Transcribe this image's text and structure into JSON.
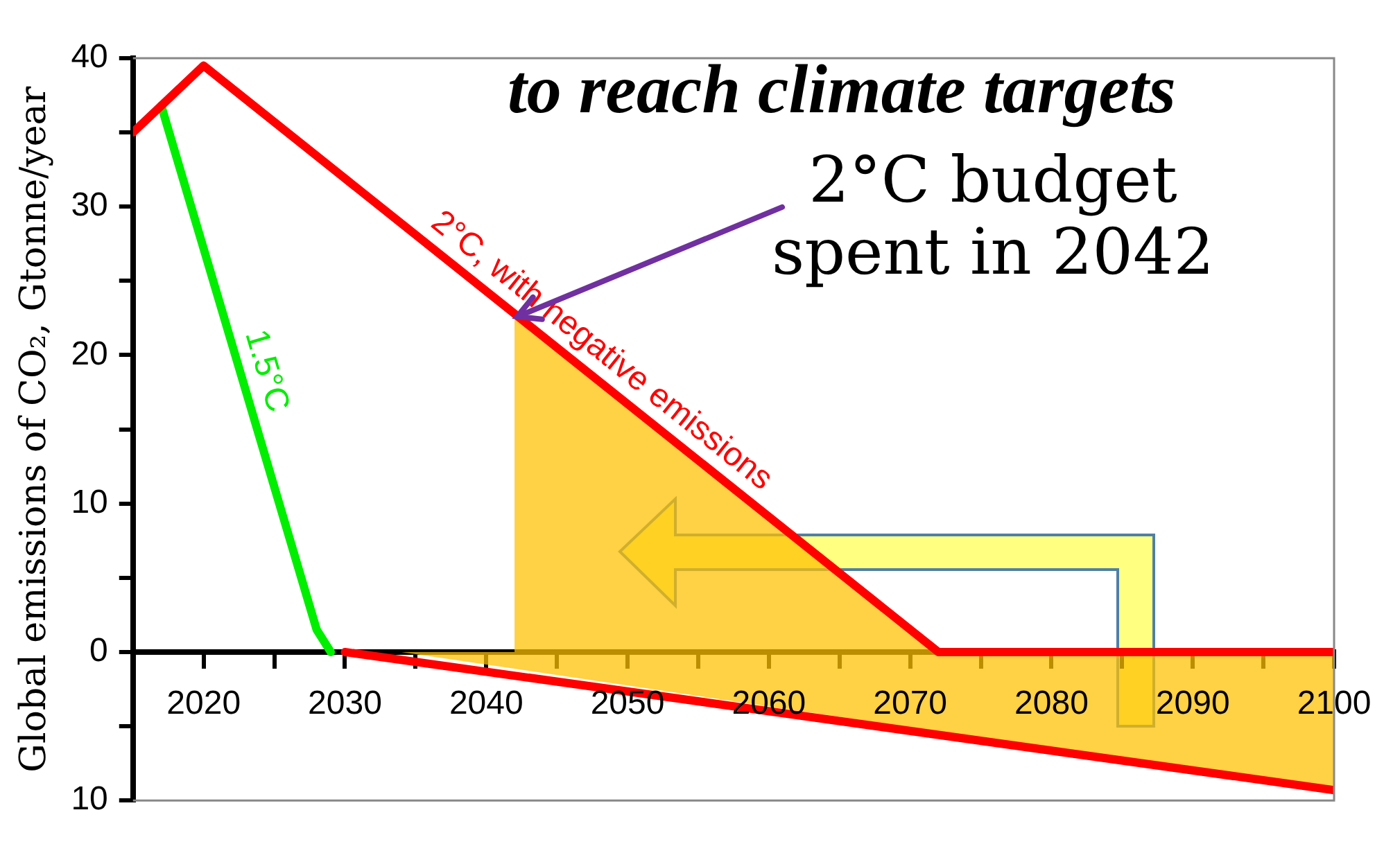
{
  "chart_data": {
    "type": "line",
    "title": "to reach climate targets",
    "ylabel": "Global emissions of CO₂, Gtonne/year",
    "xlim": [
      2015,
      2100
    ],
    "xticks": [
      2020,
      {
        "value": 2025,
        "label": null
      },
      2030,
      {
        "value": 2035,
        "label": null
      },
      2040,
      {
        "value": 2045,
        "label": null
      },
      2050,
      {
        "value": 2055,
        "label": null
      },
      2060,
      {
        "value": 2065,
        "label": null
      },
      2070,
      {
        "value": 2075,
        "label": null
      },
      2080,
      {
        "value": 2085,
        "label": null
      },
      2090,
      {
        "value": 2095,
        "label": null
      },
      2100
    ],
    "ylim": [
      -10,
      40
    ],
    "yticks": [
      {
        "value": -10,
        "label": "10"
      },
      {
        "value": -5,
        "label": null
      },
      0,
      {
        "value": 5,
        "label": null
      },
      10,
      {
        "value": 15,
        "label": null
      },
      20,
      {
        "value": 25,
        "label": null
      },
      30,
      {
        "value": 35,
        "label": null
      },
      40
    ],
    "grid": false,
    "legend": false,
    "marker": "none",
    "line_style": "solid",
    "annotations": [
      {
        "text": "2°C budget spent in 2042",
        "x": 2042,
        "y": 22.5
      }
    ],
    "series": [
      {
        "name": "2°C, with negative emissions",
        "color": "#ff0000",
        "x": [
          2015,
          2020,
          2072,
          2100
        ],
        "values": [
          35,
          39.5,
          0,
          0
        ]
      },
      {
        "color": "#ff0000",
        "x": [
          2030,
          2100
        ],
        "values": [
          0,
          -9.3
        ]
      },
      {
        "name": "1.5°C",
        "color": "#00ee00",
        "x": [
          2017,
          2028,
          2029
        ],
        "values": [
          36.8,
          1.5,
          0
        ]
      },
      {
        "type": "area",
        "color": "#ffc000",
        "x": [
          2042,
          2072
        ],
        "values": [
          22.5,
          0
        ]
      },
      {
        "type": "area",
        "color": "#ffc000",
        "x": [
          2034,
          2100
        ],
        "values": [
          0,
          -9.3
        ]
      }
    ]
  }
}
